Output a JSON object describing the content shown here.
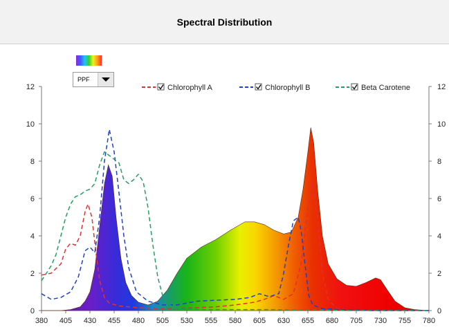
{
  "header": {
    "title": "Spectral Distribution"
  },
  "controls": {
    "dropdown_value": "PPF"
  },
  "chart_data": {
    "type": "area",
    "title": "Spectral Distribution",
    "x_ticks": [
      380,
      405,
      430,
      455,
      480,
      505,
      530,
      555,
      580,
      605,
      630,
      655,
      680,
      705,
      730,
      755,
      780
    ],
    "xlim": [
      380,
      780
    ],
    "y_ticks": [
      0,
      2,
      4,
      6,
      8,
      10,
      12
    ],
    "ylim": [
      0,
      12
    ],
    "secondary_y_ticks": [
      0,
      2,
      4,
      6,
      8,
      10,
      12
    ],
    "grid": false,
    "legend_position": "top-right",
    "legend": [
      {
        "name": "Chlorophyll A",
        "color": "#e03030",
        "dash": true,
        "checked": true
      },
      {
        "name": "Chlorophyll B",
        "color": "#2040c8",
        "dash": true,
        "checked": true
      },
      {
        "name": "Beta Carotene",
        "color": "#20a060",
        "dash": true,
        "checked": true
      }
    ],
    "spectrum": {
      "name": "PPF",
      "points": [
        [
          380,
          0
        ],
        [
          400,
          0
        ],
        [
          410,
          0.05
        ],
        [
          420,
          0.2
        ],
        [
          425,
          0.5
        ],
        [
          430,
          1.0
        ],
        [
          435,
          2.2
        ],
        [
          440,
          4.5
        ],
        [
          445,
          6.8
        ],
        [
          449,
          7.8
        ],
        [
          453,
          7.2
        ],
        [
          457,
          5.0
        ],
        [
          462,
          2.8
        ],
        [
          467,
          1.5
        ],
        [
          473,
          0.8
        ],
        [
          480,
          0.45
        ],
        [
          490,
          0.3
        ],
        [
          500,
          0.5
        ],
        [
          510,
          1.1
        ],
        [
          520,
          2.0
        ],
        [
          530,
          2.8
        ],
        [
          545,
          3.4
        ],
        [
          560,
          3.8
        ],
        [
          575,
          4.3
        ],
        [
          590,
          4.75
        ],
        [
          600,
          4.75
        ],
        [
          610,
          4.6
        ],
        [
          620,
          4.3
        ],
        [
          630,
          4.1
        ],
        [
          638,
          4.2
        ],
        [
          645,
          5.0
        ],
        [
          650,
          6.5
        ],
        [
          655,
          8.5
        ],
        [
          658,
          9.8
        ],
        [
          661,
          9.0
        ],
        [
          665,
          6.5
        ],
        [
          670,
          4.0
        ],
        [
          676,
          2.5
        ],
        [
          685,
          1.7
        ],
        [
          695,
          1.35
        ],
        [
          705,
          1.3
        ],
        [
          715,
          1.5
        ],
        [
          725,
          1.75
        ],
        [
          730,
          1.65
        ],
        [
          737,
          1.1
        ],
        [
          745,
          0.5
        ],
        [
          755,
          0.15
        ],
        [
          765,
          0.05
        ],
        [
          780,
          0
        ]
      ]
    },
    "series": [
      {
        "name": "Chlorophyll A",
        "color": "#e03030",
        "points": [
          [
            380,
            1.9
          ],
          [
            390,
            2.0
          ],
          [
            400,
            2.5
          ],
          [
            405,
            3.3
          ],
          [
            410,
            3.6
          ],
          [
            415,
            3.5
          ],
          [
            420,
            4.0
          ],
          [
            425,
            5.3
          ],
          [
            428,
            5.7
          ],
          [
            432,
            5.0
          ],
          [
            436,
            3.2
          ],
          [
            440,
            1.6
          ],
          [
            445,
            0.7
          ],
          [
            450,
            0.4
          ],
          [
            460,
            0.25
          ],
          [
            480,
            0.15
          ],
          [
            500,
            0.1
          ],
          [
            520,
            0.12
          ],
          [
            540,
            0.15
          ],
          [
            560,
            0.2
          ],
          [
            580,
            0.3
          ],
          [
            600,
            0.45
          ],
          [
            610,
            0.6
          ],
          [
            620,
            0.8
          ],
          [
            630,
            0.6
          ],
          [
            640,
            0.9
          ],
          [
            648,
            2.5
          ],
          [
            655,
            5.5
          ],
          [
            660,
            6.9
          ],
          [
            665,
            5.0
          ],
          [
            670,
            2.0
          ],
          [
            676,
            0.6
          ],
          [
            685,
            0.1
          ],
          [
            700,
            0.02
          ],
          [
            720,
            0
          ],
          [
            780,
            0
          ]
        ]
      },
      {
        "name": "Chlorophyll B",
        "color": "#2040c8",
        "points": [
          [
            380,
            0.9
          ],
          [
            390,
            0.6
          ],
          [
            400,
            0.7
          ],
          [
            410,
            1.0
          ],
          [
            418,
            1.8
          ],
          [
            425,
            3.2
          ],
          [
            430,
            3.4
          ],
          [
            435,
            3.1
          ],
          [
            440,
            5.0
          ],
          [
            445,
            8.0
          ],
          [
            450,
            9.7
          ],
          [
            455,
            8.5
          ],
          [
            460,
            6.3
          ],
          [
            465,
            4.0
          ],
          [
            470,
            2.3
          ],
          [
            478,
            1.0
          ],
          [
            490,
            0.5
          ],
          [
            505,
            0.3
          ],
          [
            520,
            0.3
          ],
          [
            540,
            0.5
          ],
          [
            560,
            0.55
          ],
          [
            580,
            0.6
          ],
          [
            595,
            0.7
          ],
          [
            605,
            0.9
          ],
          [
            615,
            0.75
          ],
          [
            625,
            0.9
          ],
          [
            630,
            2.0
          ],
          [
            635,
            3.5
          ],
          [
            640,
            4.8
          ],
          [
            645,
            5.0
          ],
          [
            648,
            4.3
          ],
          [
            652,
            2.5
          ],
          [
            656,
            0.8
          ],
          [
            660,
            0.3
          ],
          [
            670,
            0.1
          ],
          [
            690,
            0.05
          ],
          [
            720,
            0
          ],
          [
            780,
            0
          ]
        ]
      },
      {
        "name": "Beta Carotene",
        "color": "#20a060",
        "points": [
          [
            380,
            1.6
          ],
          [
            385,
            2.0
          ],
          [
            390,
            2.4
          ],
          [
            395,
            3.0
          ],
          [
            400,
            4.0
          ],
          [
            405,
            5.0
          ],
          [
            410,
            5.7
          ],
          [
            415,
            6.1
          ],
          [
            420,
            6.2
          ],
          [
            425,
            6.4
          ],
          [
            430,
            6.5
          ],
          [
            435,
            6.8
          ],
          [
            440,
            7.8
          ],
          [
            445,
            8.5
          ],
          [
            450,
            8.3
          ],
          [
            455,
            8.1
          ],
          [
            460,
            7.9
          ],
          [
            465,
            7.0
          ],
          [
            470,
            6.8
          ],
          [
            475,
            7.0
          ],
          [
            480,
            7.3
          ],
          [
            485,
            6.9
          ],
          [
            490,
            5.5
          ],
          [
            495,
            3.5
          ],
          [
            500,
            1.8
          ],
          [
            505,
            0.8
          ],
          [
            510,
            0.4
          ],
          [
            515,
            0.2
          ],
          [
            520,
            0.1
          ],
          [
            540,
            0.05
          ],
          [
            560,
            0.05
          ],
          [
            580,
            0.05
          ],
          [
            600,
            0.05
          ],
          [
            620,
            0.05
          ],
          [
            640,
            0.03
          ],
          [
            660,
            0.05
          ],
          [
            680,
            0.02
          ],
          [
            700,
            0
          ],
          [
            780,
            0
          ]
        ]
      }
    ]
  }
}
